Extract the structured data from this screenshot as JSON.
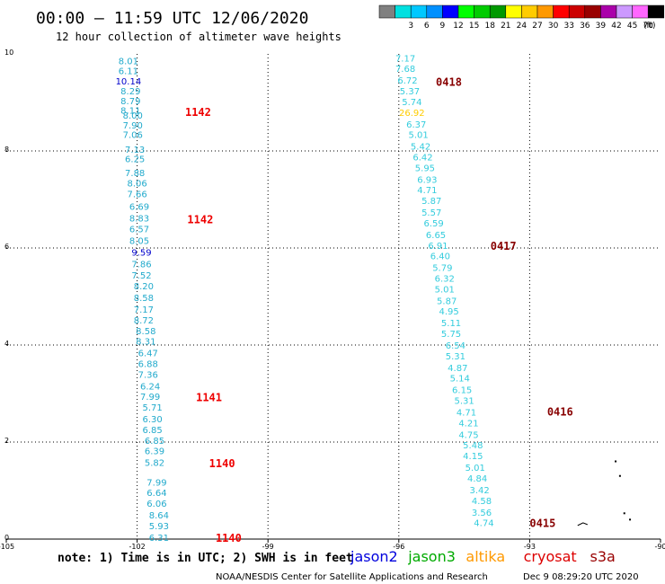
{
  "header": {
    "title": "00:00 — 11:59 UTC 12/06/2020",
    "subtitle": "12 hour collection of altimeter wave heights"
  },
  "color_scale": {
    "unit": "(ft)",
    "swatches": [
      {
        "color": "#808080",
        "label": ""
      },
      {
        "color": "#00e0e0",
        "label": "3"
      },
      {
        "color": "#00c8ff",
        "label": "6"
      },
      {
        "color": "#0090ff",
        "label": "9"
      },
      {
        "color": "#0000ff",
        "label": "12"
      },
      {
        "color": "#00ff00",
        "label": "15"
      },
      {
        "color": "#00cc00",
        "label": "18"
      },
      {
        "color": "#009900",
        "label": "21"
      },
      {
        "color": "#ffff00",
        "label": "24"
      },
      {
        "color": "#ffcc00",
        "label": "27"
      },
      {
        "color": "#ff9900",
        "label": "30"
      },
      {
        "color": "#ff0000",
        "label": "33"
      },
      {
        "color": "#cc0000",
        "label": "36"
      },
      {
        "color": "#990000",
        "label": "39"
      },
      {
        "color": "#aa00aa",
        "label": "42"
      },
      {
        "color": "#cc99ff",
        "label": "45"
      },
      {
        "color": "#ff66ff",
        "label": "70"
      },
      {
        "color": "#000000",
        "label": ""
      }
    ]
  },
  "map": {
    "lon_range": [
      -105,
      -90
    ],
    "lat_range": [
      0,
      10
    ],
    "x_ticks": [
      {
        "value": -105,
        "label": "-105"
      },
      {
        "value": -102,
        "label": "-102"
      },
      {
        "value": -99,
        "label": "-99"
      },
      {
        "value": -96,
        "label": "-96"
      },
      {
        "value": -93,
        "label": "-93"
      },
      {
        "value": -90,
        "label": "-90"
      }
    ],
    "y_ticks": [
      {
        "value": 0,
        "label": "0"
      },
      {
        "value": 2,
        "label": "2"
      },
      {
        "value": 4,
        "label": "4"
      },
      {
        "value": 6,
        "label": "6"
      },
      {
        "value": 8,
        "label": "8"
      },
      {
        "value": 10,
        "label": "10"
      }
    ],
    "grid_lons": [
      -102,
      -99,
      -96,
      -93
    ],
    "grid_lats": [
      2,
      4,
      6,
      8
    ]
  },
  "track_west": {
    "color": "#22aacc",
    "observations": [
      {
        "lon": -102.2,
        "lat": 9.86,
        "text": "8.01"
      },
      {
        "lon": -102.2,
        "lat": 9.66,
        "text": "6.11"
      },
      {
        "lon": -102.2,
        "lat": 9.44,
        "text": "10.14",
        "color": "#0000cc"
      },
      {
        "lon": -102.15,
        "lat": 9.24,
        "text": "8.29"
      },
      {
        "lon": -102.15,
        "lat": 9.04,
        "text": "8.79"
      },
      {
        "lon": -102.15,
        "lat": 8.84,
        "text": "8.11"
      },
      {
        "lon": -102.1,
        "lat": 8.74,
        "text": "8.00"
      },
      {
        "lon": -102.1,
        "lat": 8.54,
        "text": "7.90"
      },
      {
        "lon": -102.1,
        "lat": 8.34,
        "text": "7.06"
      },
      {
        "lon": -102.05,
        "lat": 8.04,
        "text": "7.13"
      },
      {
        "lon": -102.05,
        "lat": 7.84,
        "text": "6.25"
      },
      {
        "lon": -102.05,
        "lat": 7.56,
        "text": "7.88"
      },
      {
        "lon": -102.0,
        "lat": 7.34,
        "text": "8.06"
      },
      {
        "lon": -102.0,
        "lat": 7.12,
        "text": "7.66"
      },
      {
        "lon": -101.95,
        "lat": 6.86,
        "text": "6.69"
      },
      {
        "lon": -101.95,
        "lat": 6.62,
        "text": "8.83"
      },
      {
        "lon": -101.95,
        "lat": 6.4,
        "text": "6.57"
      },
      {
        "lon": -101.95,
        "lat": 6.16,
        "text": "8.05"
      },
      {
        "lon": -101.9,
        "lat": 5.92,
        "text": "9.59",
        "color": "#0000cc"
      },
      {
        "lon": -101.9,
        "lat": 5.68,
        "text": "7.86"
      },
      {
        "lon": -101.9,
        "lat": 5.44,
        "text": "7.52"
      },
      {
        "lon": -101.85,
        "lat": 5.22,
        "text": "8.20"
      },
      {
        "lon": -101.85,
        "lat": 4.98,
        "text": "8.58"
      },
      {
        "lon": -101.85,
        "lat": 4.74,
        "text": "7.17"
      },
      {
        "lon": -101.85,
        "lat": 4.52,
        "text": "8.72"
      },
      {
        "lon": -101.8,
        "lat": 4.3,
        "text": "8.58"
      },
      {
        "lon": -101.8,
        "lat": 4.08,
        "text": "8.31"
      },
      {
        "lon": -101.75,
        "lat": 3.84,
        "text": "6.47"
      },
      {
        "lon": -101.75,
        "lat": 3.62,
        "text": "6.88"
      },
      {
        "lon": -101.75,
        "lat": 3.4,
        "text": "7.36"
      },
      {
        "lon": -101.7,
        "lat": 3.16,
        "text": "6.24"
      },
      {
        "lon": -101.7,
        "lat": 2.94,
        "text": "7.99"
      },
      {
        "lon": -101.65,
        "lat": 2.72,
        "text": "5.71"
      },
      {
        "lon": -101.65,
        "lat": 2.48,
        "text": "6.30"
      },
      {
        "lon": -101.65,
        "lat": 2.26,
        "text": "6.85"
      },
      {
        "lon": -101.6,
        "lat": 2.04,
        "text": "6.85"
      },
      {
        "lon": -101.6,
        "lat": 1.82,
        "text": "6.39"
      },
      {
        "lon": -101.6,
        "lat": 1.58,
        "text": "5.82"
      },
      {
        "lon": -101.55,
        "lat": 1.18,
        "text": "7.99"
      },
      {
        "lon": -101.55,
        "lat": 0.96,
        "text": "6.64"
      },
      {
        "lon": -101.55,
        "lat": 0.74,
        "text": "6.06"
      },
      {
        "lon": -101.5,
        "lat": 0.5,
        "text": "8.64"
      },
      {
        "lon": -101.5,
        "lat": 0.28,
        "text": "5.93"
      },
      {
        "lon": -101.5,
        "lat": 0.04,
        "text": "6.31"
      }
    ],
    "passes": [
      {
        "lon": -100.9,
        "lat": 8.8,
        "text": "1142"
      },
      {
        "lon": -100.85,
        "lat": 6.58,
        "text": "1142"
      },
      {
        "lon": -100.65,
        "lat": 2.92,
        "text": "1141"
      },
      {
        "lon": -100.35,
        "lat": 1.56,
        "text": "1140"
      },
      {
        "lon": -100.2,
        "lat": 0.02,
        "text": "1140"
      }
    ]
  },
  "track_east": {
    "color": "#33ccdd",
    "observations": [
      {
        "lon": -95.85,
        "lat": 9.92,
        "text": "7.17"
      },
      {
        "lon": -95.85,
        "lat": 9.7,
        "text": "7.68"
      },
      {
        "lon": -95.8,
        "lat": 9.46,
        "text": "6.72"
      },
      {
        "lon": -95.75,
        "lat": 9.24,
        "text": "5.37"
      },
      {
        "lon": -95.7,
        "lat": 9.02,
        "text": "5.74"
      },
      {
        "lon": -95.7,
        "lat": 8.8,
        "text": "26.92",
        "color": "#ffcc00"
      },
      {
        "lon": -95.6,
        "lat": 8.56,
        "text": "6.37"
      },
      {
        "lon": -95.55,
        "lat": 8.34,
        "text": "5.01"
      },
      {
        "lon": -95.5,
        "lat": 8.1,
        "text": "5.42"
      },
      {
        "lon": -95.45,
        "lat": 7.88,
        "text": "6.42"
      },
      {
        "lon": -95.4,
        "lat": 7.66,
        "text": "5.95"
      },
      {
        "lon": -95.35,
        "lat": 7.42,
        "text": "6.93"
      },
      {
        "lon": -95.35,
        "lat": 7.2,
        "text": "4.71"
      },
      {
        "lon": -95.25,
        "lat": 6.98,
        "text": "5.87"
      },
      {
        "lon": -95.25,
        "lat": 6.74,
        "text": "5.57"
      },
      {
        "lon": -95.2,
        "lat": 6.52,
        "text": "6.59"
      },
      {
        "lon": -95.15,
        "lat": 6.28,
        "text": "6.65"
      },
      {
        "lon": -95.1,
        "lat": 6.06,
        "text": "6.91"
      },
      {
        "lon": -95.05,
        "lat": 5.84,
        "text": "6.40"
      },
      {
        "lon": -95.0,
        "lat": 5.6,
        "text": "5.79"
      },
      {
        "lon": -94.95,
        "lat": 5.38,
        "text": "6.32"
      },
      {
        "lon": -94.95,
        "lat": 5.16,
        "text": "5.01"
      },
      {
        "lon": -94.9,
        "lat": 4.92,
        "text": "5.87"
      },
      {
        "lon": -94.85,
        "lat": 4.7,
        "text": "4.95"
      },
      {
        "lon": -94.8,
        "lat": 4.46,
        "text": "5.11"
      },
      {
        "lon": -94.8,
        "lat": 4.24,
        "text": "5.75"
      },
      {
        "lon": -94.7,
        "lat": 4.0,
        "text": "6.54"
      },
      {
        "lon": -94.7,
        "lat": 3.78,
        "text": "5.31"
      },
      {
        "lon": -94.65,
        "lat": 3.54,
        "text": "4.87"
      },
      {
        "lon": -94.6,
        "lat": 3.32,
        "text": "5.14"
      },
      {
        "lon": -94.55,
        "lat": 3.08,
        "text": "6.15"
      },
      {
        "lon": -94.5,
        "lat": 2.86,
        "text": "5.31"
      },
      {
        "lon": -94.45,
        "lat": 2.62,
        "text": "4.71"
      },
      {
        "lon": -94.4,
        "lat": 2.4,
        "text": "4.21"
      },
      {
        "lon": -94.4,
        "lat": 2.16,
        "text": "4.75"
      },
      {
        "lon": -94.3,
        "lat": 1.94,
        "text": "5.48"
      },
      {
        "lon": -94.3,
        "lat": 1.72,
        "text": "4.15"
      },
      {
        "lon": -94.25,
        "lat": 1.48,
        "text": "5.01"
      },
      {
        "lon": -94.2,
        "lat": 1.26,
        "text": "4.84"
      },
      {
        "lon": -94.15,
        "lat": 1.02,
        "text": "3.42"
      },
      {
        "lon": -94.1,
        "lat": 0.8,
        "text": "4.58"
      },
      {
        "lon": -94.1,
        "lat": 0.56,
        "text": "3.56"
      },
      {
        "lon": -94.05,
        "lat": 0.34,
        "text": "4.74"
      }
    ],
    "passes": [
      {
        "lon": -95.15,
        "lat": 9.42,
        "text": "0418"
      },
      {
        "lon": -93.9,
        "lat": 6.04,
        "text": "0417"
      },
      {
        "lon": -92.6,
        "lat": 2.62,
        "text": "0416"
      },
      {
        "lon": -93.0,
        "lat": 0.32,
        "text": "0415"
      }
    ]
  },
  "coastline": [
    {
      "lon": -91.05,
      "lat": 1.62
    },
    {
      "lon": -90.95,
      "lat": 1.32
    },
    {
      "lon": -90.85,
      "lat": 0.55
    },
    {
      "lon": -90.72,
      "lat": 0.42
    }
  ],
  "footer": {
    "note": "note: 1) Time is in UTC; 2) SWH is in feet",
    "credit": "NOAA/NESDIS Center for Satellite Applications and Research",
    "generated": "Dec  9 08:29:20 UTC 2020",
    "legend": [
      {
        "label": "jason2",
        "color": "#0000dd"
      },
      {
        "label": "jason3",
        "color": "#00aa00"
      },
      {
        "label": "altika",
        "color": "#ff9900"
      },
      {
        "label": "cryosat",
        "color": "#dd0000"
      },
      {
        "label": "s3a",
        "color": "#990000"
      }
    ]
  }
}
